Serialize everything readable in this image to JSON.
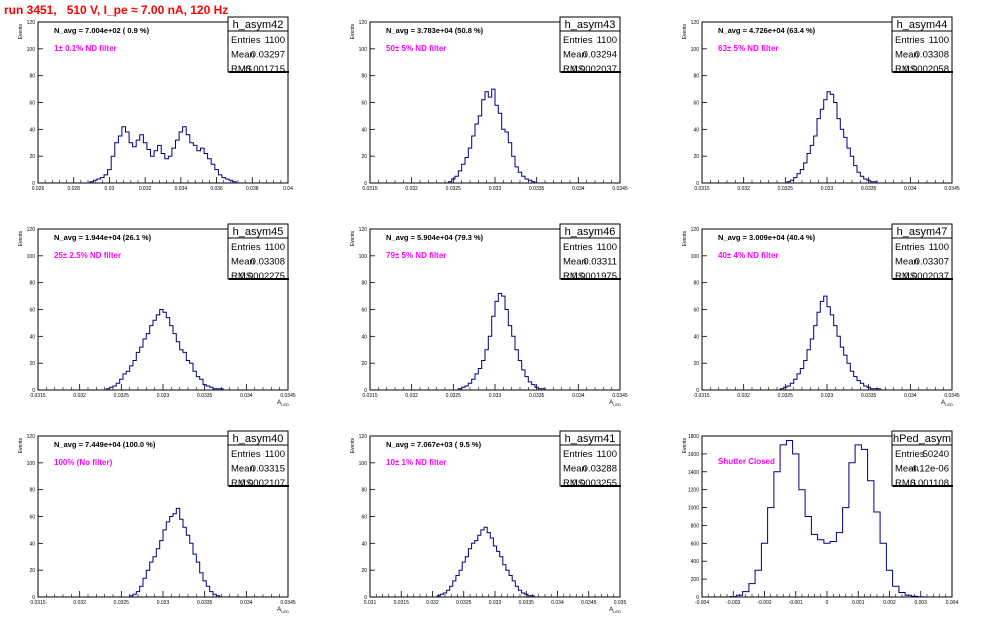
{
  "run_title": "run 3451,   510 V, I_pe ≈ 7.00 nA, 120 Hz",
  "chart_data": [
    {
      "type": "histogram",
      "name": "h_asym42",
      "stats": {
        "Entries": "1100",
        "Mean": "0.03297",
        "RMS": "0.001715"
      },
      "navg": "N_avg = 7.004e+02 ( 0.9 %)",
      "filter": "1± 0.1% ND filter",
      "ylabel": "Events",
      "xlabel": "",
      "xlim": [
        0.026,
        0.04
      ],
      "ylim": [
        0,
        120
      ],
      "xticks": [
        0.026,
        0.028,
        0.03,
        0.032,
        0.034,
        0.036,
        0.038,
        0.04
      ],
      "xticklabels": [
        "0.026",
        "0.028",
        "0.03",
        "0.032",
        "0.034",
        "0.036",
        "0.038",
        "0.04"
      ],
      "yticks": [
        0,
        20,
        40,
        60,
        80,
        100,
        120
      ],
      "yticklabels": [
        "0",
        "20",
        "40",
        "60",
        "80",
        "100",
        "120"
      ],
      "x": [
        0.029,
        0.0292,
        0.0294,
        0.0296,
        0.0298,
        0.03,
        0.0302,
        0.0304,
        0.0306,
        0.0308,
        0.031,
        0.0312,
        0.0314,
        0.0316,
        0.0318,
        0.032,
        0.0322,
        0.0324,
        0.0326,
        0.0328,
        0.033,
        0.0332,
        0.0334,
        0.0336,
        0.0338,
        0.034,
        0.0342,
        0.0344,
        0.0346,
        0.0348,
        0.035,
        0.0352,
        0.0354,
        0.0356,
        0.0358,
        0.036,
        0.0362,
        0.0364,
        0.0366,
        0.0368,
        0.037
      ],
      "y": [
        1,
        2,
        3,
        4,
        6,
        10,
        20,
        30,
        35,
        42,
        38,
        30,
        27,
        32,
        36,
        30,
        25,
        20,
        24,
        28,
        22,
        18,
        20,
        26,
        32,
        38,
        42,
        36,
        30,
        28,
        24,
        26,
        22,
        18,
        14,
        10,
        6,
        4,
        3,
        2,
        1
      ]
    },
    {
      "type": "histogram",
      "name": "h_asym43",
      "stats": {
        "Entries": "1100",
        "Mean": "0.03294",
        "RMS": "0.0002037"
      },
      "navg": "N_avg = 3.783e+04 (50.8 %)",
      "filter": "50± 5% ND filter",
      "ylabel": "Events",
      "xlabel": "",
      "xlim": [
        0.0315,
        0.0345
      ],
      "ylim": [
        0,
        120
      ],
      "xticks": [
        0.0315,
        0.032,
        0.0325,
        0.033,
        0.0335,
        0.034,
        0.0345
      ],
      "xticklabels": [
        "0.0315",
        "0.032",
        "0.0325",
        "0.033",
        "0.0335",
        "0.034",
        "0.0345"
      ],
      "yticks": [
        0,
        20,
        40,
        60,
        80,
        100,
        120
      ],
      "yticklabels": [
        "0",
        "20",
        "40",
        "60",
        "80",
        "100",
        "120"
      ],
      "x": [
        0.03246,
        0.0325,
        0.03254,
        0.03258,
        0.03262,
        0.03266,
        0.0327,
        0.03274,
        0.03278,
        0.03282,
        0.03286,
        0.0329,
        0.03294,
        0.03298,
        0.03302,
        0.03306,
        0.0331,
        0.03314,
        0.03318,
        0.03322,
        0.03326,
        0.0333,
        0.03334,
        0.03338,
        0.03342,
        0.03346
      ],
      "y": [
        1,
        3,
        5,
        9,
        14,
        19,
        26,
        35,
        44,
        50,
        62,
        68,
        64,
        70,
        58,
        52,
        40,
        38,
        30,
        20,
        12,
        8,
        5,
        3,
        2,
        1
      ]
    },
    {
      "type": "histogram",
      "name": "h_asym44",
      "stats": {
        "Entries": "1100",
        "Mean": "0.03308",
        "RMS": "0.0002058"
      },
      "navg": "N_avg = 4.726e+04 (63.4 %)",
      "filter": "63± 5% ND filter",
      "ylabel": "Events",
      "xlabel": "",
      "xlim": [
        0.0315,
        0.0345
      ],
      "ylim": [
        0,
        120
      ],
      "xticks": [
        0.0315,
        0.032,
        0.0325,
        0.033,
        0.0335,
        0.034,
        0.0345
      ],
      "xticklabels": [
        "0.0315",
        "0.032",
        "0.0325",
        "0.033",
        "0.0335",
        "0.034",
        "0.0345"
      ],
      "yticks": [
        0,
        20,
        40,
        60,
        80,
        100,
        120
      ],
      "yticklabels": [
        "0",
        "20",
        "40",
        "60",
        "80",
        "100",
        "120"
      ],
      "x": [
        0.03254,
        0.03258,
        0.03262,
        0.03266,
        0.0327,
        0.03274,
        0.03278,
        0.03282,
        0.03286,
        0.0329,
        0.03294,
        0.03298,
        0.03302,
        0.03306,
        0.0331,
        0.03314,
        0.03318,
        0.03322,
        0.03326,
        0.0333,
        0.03334,
        0.03338,
        0.03342,
        0.03346,
        0.0335,
        0.03354,
        0.03358
      ],
      "y": [
        1,
        2,
        4,
        7,
        10,
        15,
        22,
        28,
        35,
        48,
        55,
        62,
        68,
        66,
        60,
        48,
        40,
        34,
        26,
        20,
        13,
        8,
        5,
        3,
        2,
        1,
        1
      ]
    },
    {
      "type": "histogram",
      "name": "h_asym45",
      "stats": {
        "Entries": "1100",
        "Mean": "0.03308",
        "RMS": "0.0002275"
      },
      "navg": "N_avg = 1.944e+04 (26.1 %)",
      "filter": "25± 2.5% ND filter",
      "ylabel": "Events",
      "xlabel": "A_{LED}",
      "xlim": [
        0.0315,
        0.0345
      ],
      "ylim": [
        0,
        120
      ],
      "xticks": [
        0.0315,
        0.032,
        0.0325,
        0.033,
        0.0335,
        0.034,
        0.0345
      ],
      "xticklabels": [
        "0.0315",
        "0.032",
        "0.0325",
        "0.033",
        "0.0335",
        "0.034",
        "0.0345"
      ],
      "yticks": [
        0,
        20,
        40,
        60,
        80,
        100,
        120
      ],
      "yticklabels": [
        "0",
        "20",
        "40",
        "60",
        "80",
        "100",
        "120"
      ],
      "x": [
        0.03234,
        0.03238,
        0.03242,
        0.03246,
        0.0325,
        0.03254,
        0.03258,
        0.03262,
        0.03266,
        0.0327,
        0.03274,
        0.03278,
        0.03282,
        0.03286,
        0.0329,
        0.03294,
        0.03298,
        0.03302,
        0.03306,
        0.0331,
        0.03314,
        0.03318,
        0.03322,
        0.03326,
        0.0333,
        0.03334,
        0.03338,
        0.03342,
        0.03346,
        0.0335,
        0.03354,
        0.03358,
        0.03362,
        0.03366,
        0.0337
      ],
      "y": [
        1,
        2,
        3,
        5,
        8,
        12,
        14,
        18,
        22,
        28,
        32,
        38,
        42,
        48,
        52,
        56,
        60,
        58,
        54,
        48,
        42,
        36,
        30,
        28,
        22,
        20,
        14,
        10,
        8,
        4,
        3,
        2,
        1,
        1,
        1
      ]
    },
    {
      "type": "histogram",
      "name": "h_asym46",
      "stats": {
        "Entries": "1100",
        "Mean": "0.03311",
        "RMS": "0.0001975"
      },
      "navg": "N_avg = 5.904e+04 (79.3 %)",
      "filter": "79± 5% ND filter",
      "ylabel": "Events",
      "xlabel": "A_{LED}",
      "xlim": [
        0.0315,
        0.0345
      ],
      "ylim": [
        0,
        120
      ],
      "xticks": [
        0.0315,
        0.032,
        0.0325,
        0.033,
        0.0335,
        0.034,
        0.0345
      ],
      "xticklabels": [
        "0.0315",
        "0.032",
        "0.0325",
        "0.033",
        "0.0335",
        "0.034",
        "0.0345"
      ],
      "yticks": [
        0,
        20,
        40,
        60,
        80,
        100,
        120
      ],
      "yticklabels": [
        "0",
        "20",
        "40",
        "60",
        "80",
        "100",
        "120"
      ],
      "x": [
        0.03258,
        0.03262,
        0.03266,
        0.0327,
        0.03274,
        0.03278,
        0.03282,
        0.03286,
        0.0329,
        0.03294,
        0.03298,
        0.03302,
        0.03306,
        0.0331,
        0.03314,
        0.03318,
        0.03322,
        0.03326,
        0.0333,
        0.03334,
        0.03338,
        0.03342,
        0.03346,
        0.0335,
        0.03354,
        0.03358
      ],
      "y": [
        1,
        2,
        3,
        5,
        8,
        12,
        16,
        22,
        30,
        40,
        55,
        66,
        72,
        70,
        60,
        48,
        40,
        30,
        22,
        15,
        10,
        6,
        4,
        2,
        1,
        1
      ]
    },
    {
      "type": "histogram",
      "name": "h_asym47",
      "stats": {
        "Entries": "1100",
        "Mean": "0.03307",
        "RMS": "0.0002037"
      },
      "navg": "N_avg = 3.009e+04 (40.4 %)",
      "filter": "40± 4% ND filter",
      "ylabel": "Events",
      "xlabel": "A_{LED}",
      "xlim": [
        0.0315,
        0.0345
      ],
      "ylim": [
        0,
        120
      ],
      "xticks": [
        0.0315,
        0.032,
        0.0325,
        0.033,
        0.0335,
        0.034,
        0.0345
      ],
      "xticklabels": [
        "0.0315",
        "0.032",
        "0.0325",
        "0.033",
        "0.0335",
        "0.034",
        "0.0345"
      ],
      "yticks": [
        0,
        20,
        40,
        60,
        80,
        100,
        120
      ],
      "yticklabels": [
        "0",
        "20",
        "40",
        "60",
        "80",
        "100",
        "120"
      ],
      "x": [
        0.03246,
        0.0325,
        0.03254,
        0.03258,
        0.03262,
        0.03266,
        0.0327,
        0.03274,
        0.03278,
        0.03282,
        0.03286,
        0.0329,
        0.03294,
        0.03298,
        0.03302,
        0.03306,
        0.0331,
        0.03314,
        0.03318,
        0.03322,
        0.03326,
        0.0333,
        0.03334,
        0.03338,
        0.03342,
        0.03346,
        0.0335,
        0.03354,
        0.03358,
        0.03362
      ],
      "y": [
        1,
        2,
        3,
        5,
        8,
        12,
        16,
        22,
        30,
        38,
        48,
        58,
        66,
        70,
        62,
        56,
        48,
        40,
        32,
        26,
        20,
        14,
        10,
        7,
        5,
        3,
        2,
        1,
        1,
        1
      ]
    },
    {
      "type": "histogram",
      "name": "h_asym40",
      "stats": {
        "Entries": "1100",
        "Mean": "0.03315",
        "RMS": "0.0002107"
      },
      "navg": "N_avg = 7.449e+04 (100.0 %)",
      "filter": "100% (No filter)",
      "ylabel": "Events",
      "xlabel": "A_{LED}",
      "xlim": [
        0.0315,
        0.0345
      ],
      "ylim": [
        0,
        120
      ],
      "xticks": [
        0.0315,
        0.032,
        0.0325,
        0.033,
        0.0335,
        0.034,
        0.0345
      ],
      "xticklabels": [
        "0.0315",
        "0.032",
        "0.0325",
        "0.033",
        "0.0335",
        "0.034",
        "0.0345"
      ],
      "yticks": [
        0,
        20,
        40,
        60,
        80,
        100,
        120
      ],
      "yticklabels": [
        "0",
        "20",
        "40",
        "60",
        "80",
        "100",
        "120"
      ],
      "x": [
        0.03262,
        0.03266,
        0.0327,
        0.03274,
        0.03278,
        0.03282,
        0.03286,
        0.0329,
        0.03294,
        0.03298,
        0.03302,
        0.03306,
        0.0331,
        0.03314,
        0.03318,
        0.03322,
        0.03326,
        0.0333,
        0.03334,
        0.03338,
        0.03342,
        0.03346,
        0.0335,
        0.03354,
        0.03358,
        0.03362,
        0.03366
      ],
      "y": [
        1,
        2,
        4,
        8,
        14,
        20,
        26,
        30,
        36,
        42,
        50,
        56,
        60,
        62,
        66,
        58,
        52,
        46,
        40,
        32,
        26,
        18,
        12,
        8,
        4,
        2,
        1
      ]
    },
    {
      "type": "histogram",
      "name": "h_asym41",
      "stats": {
        "Entries": "1100",
        "Mean": "0.03288",
        "RMS": "0.0003255"
      },
      "navg": "N_avg = 7.067e+03 ( 9.5 %)",
      "filter": "10± 1% ND filter",
      "ylabel": "Events",
      "xlabel": "A_{LED}",
      "xlim": [
        0.031,
        0.035
      ],
      "ylim": [
        0,
        120
      ],
      "xticks": [
        0.031,
        0.0315,
        0.032,
        0.0325,
        0.033,
        0.0335,
        0.034,
        0.0345,
        0.035
      ],
      "xticklabels": [
        "0.031",
        "0.0315",
        "0.032",
        "0.0325",
        "0.033",
        "0.0335",
        "0.034",
        "0.0345",
        "0.035"
      ],
      "yticks": [
        0,
        20,
        40,
        60,
        80,
        100,
        120
      ],
      "yticklabels": [
        "0",
        "20",
        "40",
        "60",
        "80",
        "100",
        "120"
      ],
      "x": [
        0.0321,
        0.03215,
        0.0322,
        0.03225,
        0.0323,
        0.03235,
        0.0324,
        0.03245,
        0.0325,
        0.03255,
        0.0326,
        0.03265,
        0.0327,
        0.03275,
        0.0328,
        0.03285,
        0.0329,
        0.03295,
        0.033,
        0.03305,
        0.0331,
        0.03315,
        0.0332,
        0.03325,
        0.0333,
        0.03335,
        0.0334,
        0.03345,
        0.0335,
        0.03355,
        0.0336
      ],
      "y": [
        1,
        2,
        3,
        5,
        8,
        12,
        16,
        20,
        26,
        30,
        36,
        40,
        42,
        46,
        50,
        52,
        48,
        44,
        38,
        34,
        30,
        24,
        20,
        16,
        12,
        8,
        5,
        3,
        2,
        1,
        1
      ]
    },
    {
      "type": "histogram",
      "name": "hPed_asym",
      "stats": {
        "Entries": "50240",
        "Mean": "-4.12e-06",
        "RMS": "0.001108"
      },
      "navg": "",
      "filter": "Shutter Closed",
      "ylabel": "Events",
      "xlabel": "",
      "xlim": [
        -0.004,
        0.004
      ],
      "ylim": [
        0,
        1800
      ],
      "xticks": [
        -0.004,
        -0.003,
        -0.002,
        -0.001,
        0,
        0.001,
        0.002,
        0.003,
        0.004
      ],
      "xticklabels": [
        "-0.004",
        "-0.003",
        "-0.002",
        "-0.001",
        "0",
        "0.001",
        "0.002",
        "0.003",
        "0.004"
      ],
      "yticks": [
        0,
        200,
        400,
        600,
        800,
        1000,
        1200,
        1400,
        1600,
        1800
      ],
      "yticklabels": [
        "0",
        "200",
        "400",
        "600",
        "800",
        "1000",
        "1200",
        "1400",
        "1600",
        "1800"
      ],
      "x": [
        -0.003,
        -0.0028,
        -0.0026,
        -0.0024,
        -0.0022,
        -0.002,
        -0.0018,
        -0.0016,
        -0.0014,
        -0.0012,
        -0.001,
        -0.0008,
        -0.0006,
        -0.0004,
        -0.0002,
        0.0,
        0.0002,
        0.0004,
        0.0006,
        0.0008,
        0.001,
        0.0012,
        0.0014,
        0.0016,
        0.0018,
        0.002,
        0.0022,
        0.0024,
        0.0026,
        0.0028,
        0.003
      ],
      "y": [
        5,
        20,
        60,
        150,
        300,
        600,
        1000,
        1400,
        1700,
        1750,
        1600,
        1200,
        900,
        700,
        640,
        600,
        620,
        720,
        1000,
        1500,
        1700,
        1650,
        1300,
        950,
        600,
        300,
        120,
        50,
        20,
        8,
        3
      ]
    }
  ]
}
